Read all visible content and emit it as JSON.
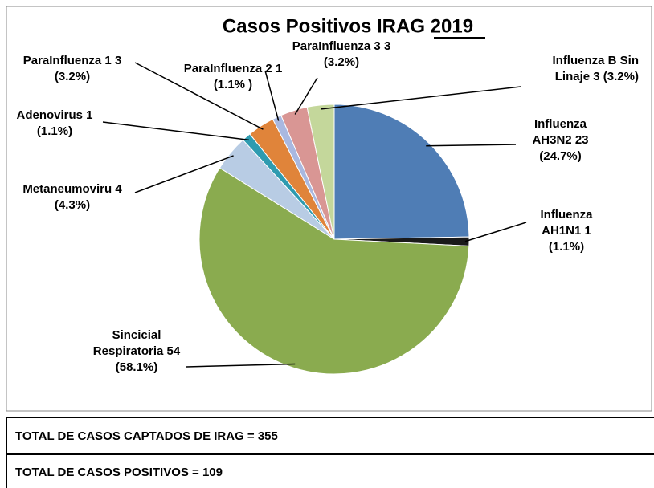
{
  "chart_data": {
    "type": "pie",
    "title": "Casos Positivos IRAG 2019",
    "categories": [
      "Influenza AH3N2",
      "Influenza AH1N1",
      "Sincicial Respiratoria",
      "Metaneumoviru",
      "Adenovirus",
      "ParaInfluenza 1",
      "ParaInfluenza 2",
      "ParaInfluenza 3",
      "Influenza B Sin Linaje"
    ],
    "values": [
      23,
      1,
      54,
      4,
      1,
      3,
      1,
      3,
      3
    ],
    "value_labels": [
      "23 (24.7%)",
      "1 (1.1%)",
      "54 (58.1%)",
      "4 (4.3%)",
      "1 (1.1%)",
      "3 (3.2%)",
      "1 (1.1% )",
      "3 (3.2%)",
      "3 (3.2%)"
    ],
    "colors": [
      "#4f7db5",
      "#1a1a1a",
      "#8aab4f",
      "#b8cce4",
      "#2e9bb0",
      "#e0843a",
      "#a9b8e0",
      "#d99694",
      "#c4d79b"
    ]
  },
  "table": {
    "rows": [
      "TOTAL DE CASOS CAPTADOS DE IRAG = 355",
      "TOTAL DE CASOS POSITIVOS = 109"
    ]
  }
}
